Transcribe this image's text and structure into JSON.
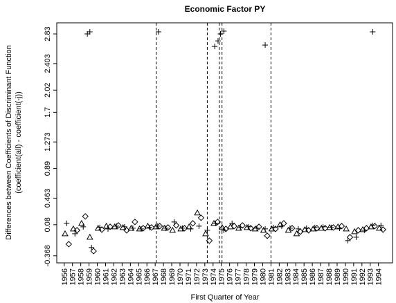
{
  "chart_data": {
    "type": "scatter",
    "title": "Economic Factor PY",
    "y_label": [
      "Differences between Coefficients of Discriminant Function",
      "(coefficient(all) - coefficient(-j))"
    ],
    "x_label": "First Quarter of Year",
    "xlim": [
      1955.1,
      1995.7
    ],
    "ylim": [
      -0.47,
      2.99
    ],
    "xticks": [
      1956,
      1957,
      1958,
      1959,
      1960,
      1961,
      1962,
      1963,
      1964,
      1965,
      1966,
      1967,
      1968,
      1969,
      1970,
      1971,
      1972,
      1973,
      1974,
      1975,
      1976,
      1977,
      1978,
      1979,
      1980,
      1981,
      1982,
      1983,
      1984,
      1985,
      1986,
      1987,
      1988,
      1989,
      1990,
      1991,
      1992,
      1993,
      1994
    ],
    "yticks": [
      -0.368,
      0.08,
      0.463,
      0.89,
      1.273,
      1.7,
      2.02,
      2.403,
      2.83
    ],
    "vlines": [
      1967.13,
      1973.3,
      1974.75,
      1975.08,
      1981.0
    ],
    "series": [
      {
        "marker": "triangle",
        "color": "#000000",
        "x": [
          1956.1,
          1957.1,
          1958.1,
          1959.1,
          1960.1,
          1961.1,
          1962.1,
          1963.1,
          1964.1,
          1965.1,
          1966.1,
          1967.1,
          1968.1,
          1969.1,
          1970.1,
          1971.1,
          1972.1,
          1973.1,
          1974.1,
          1975.1,
          1976.1,
          1977.1,
          1978.1,
          1979.1,
          1980.1,
          1981.1,
          1982.1,
          1983.1,
          1984.1,
          1985.1,
          1986.1,
          1987.1,
          1988.1,
          1989.1,
          1990.1,
          1991.1,
          1992.1,
          1993.1,
          1994.1
        ],
        "values": [
          -0.05,
          0.02,
          0.1,
          -0.1,
          0.03,
          0.06,
          0.05,
          0.04,
          0.03,
          0.02,
          0.06,
          0.05,
          0.03,
          0.0,
          0.02,
          0.05,
          0.25,
          -0.05,
          0.1,
          0.04,
          0.05,
          0.03,
          0.04,
          0.02,
          0.0,
          0.02,
          0.08,
          0.0,
          -0.05,
          0.01,
          0.02,
          0.03,
          0.04,
          0.05,
          0.02,
          -0.02,
          0.01,
          0.05,
          0.03
        ]
      },
      {
        "marker": "diamond",
        "color": "#000000",
        "x": [
          1956.55,
          1957.55,
          1958.55,
          1959.55,
          1960.55,
          1961.55,
          1962.55,
          1963.55,
          1964.55,
          1965.55,
          1966.55,
          1967.55,
          1968.55,
          1969.55,
          1970.55,
          1971.55,
          1972.55,
          1973.55,
          1974.55,
          1975.55,
          1976.55,
          1977.55,
          1978.55,
          1979.55,
          1980.55,
          1981.55,
          1982.55,
          1983.55,
          1984.55,
          1985.55,
          1986.55,
          1987.55,
          1988.55,
          1989.55,
          1990.55,
          1991.55,
          1992.55,
          1993.55,
          1994.55
        ],
        "values": [
          -0.2,
          0.0,
          0.2,
          -0.3,
          0.01,
          0.05,
          0.07,
          0.0,
          0.12,
          0.03,
          0.04,
          0.06,
          0.04,
          0.07,
          0.03,
          0.1,
          0.18,
          -0.15,
          0.12,
          0.02,
          0.06,
          0.07,
          0.03,
          0.05,
          -0.08,
          0.02,
          0.1,
          0.03,
          -0.02,
          0.0,
          0.03,
          0.03,
          0.04,
          0.06,
          -0.1,
          0.0,
          0.03,
          0.06,
          0.01
        ]
      },
      {
        "marker": "plus",
        "color": "#000000",
        "x": [
          1956.3,
          1957.3,
          1958.3,
          1959.3,
          1960.3,
          1961.3,
          1962.3,
          1963.3,
          1964.3,
          1965.3,
          1966.3,
          1967.3,
          1968.3,
          1969.3,
          1970.3,
          1971.3,
          1972.3,
          1973.3,
          1974.3,
          1975.3,
          1976.3,
          1977.3,
          1978.3,
          1979.3,
          1980.3,
          1981.3,
          1982.3,
          1983.3,
          1984.3,
          1985.3,
          1986.3,
          1987.3,
          1988.3,
          1989.3,
          1990.3,
          1991.3,
          1992.3,
          1993.3,
          1994.3,
          1958.8,
          1959.1,
          1967.4,
          1974.2,
          1974.6,
          1974.9,
          1975.3,
          1980.3,
          1993.3
        ],
        "values": [
          0.1,
          -0.05,
          0.05,
          -0.25,
          0.04,
          0.02,
          0.06,
          0.05,
          0.03,
          0.02,
          0.04,
          0.06,
          0.03,
          0.12,
          0.03,
          0.02,
          0.06,
          0.0,
          0.1,
          0.0,
          0.1,
          0.04,
          0.05,
          0.03,
          0.02,
          0.04,
          0.06,
          0.03,
          0.02,
          0.03,
          0.04,
          0.05,
          0.04,
          0.03,
          -0.15,
          -0.1,
          0.0,
          0.07,
          0.07,
          2.83,
          2.86,
          2.86,
          2.65,
          2.73,
          2.83,
          2.87,
          2.67,
          2.86
        ]
      }
    ]
  }
}
